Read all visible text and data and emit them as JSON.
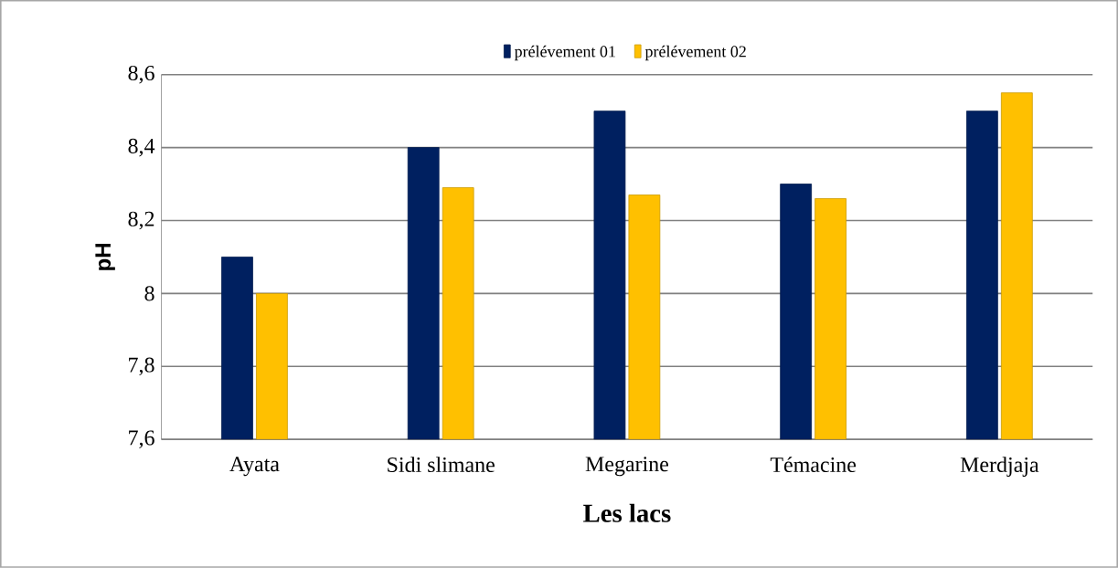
{
  "chart_data": {
    "type": "bar",
    "xlabel": "Les lacs",
    "ylabel": "pH",
    "categories": [
      "Ayata",
      "Sidi slimane",
      "Megarine",
      "Témacine",
      "Merdjaja"
    ],
    "series": [
      {
        "name": "prélévement 01",
        "color": "#002060",
        "values": [
          8.1,
          8.4,
          8.5,
          8.3,
          8.5
        ]
      },
      {
        "name": "prélévement 02",
        "color": "#ffc000",
        "values": [
          8.0,
          8.29,
          8.27,
          8.26,
          8.55
        ]
      }
    ],
    "ylim": [
      7.6,
      8.6
    ],
    "yticks": [
      {
        "value": 7.6,
        "label": "7,6"
      },
      {
        "value": 7.8,
        "label": "7,8"
      },
      {
        "value": 8,
        "label": "8"
      },
      {
        "value": 8.2,
        "label": "8,2"
      },
      {
        "value": 8.4,
        "label": "8,4"
      },
      {
        "value": 8.6,
        "label": "8,6"
      }
    ],
    "grid": "y",
    "legend": "top"
  }
}
